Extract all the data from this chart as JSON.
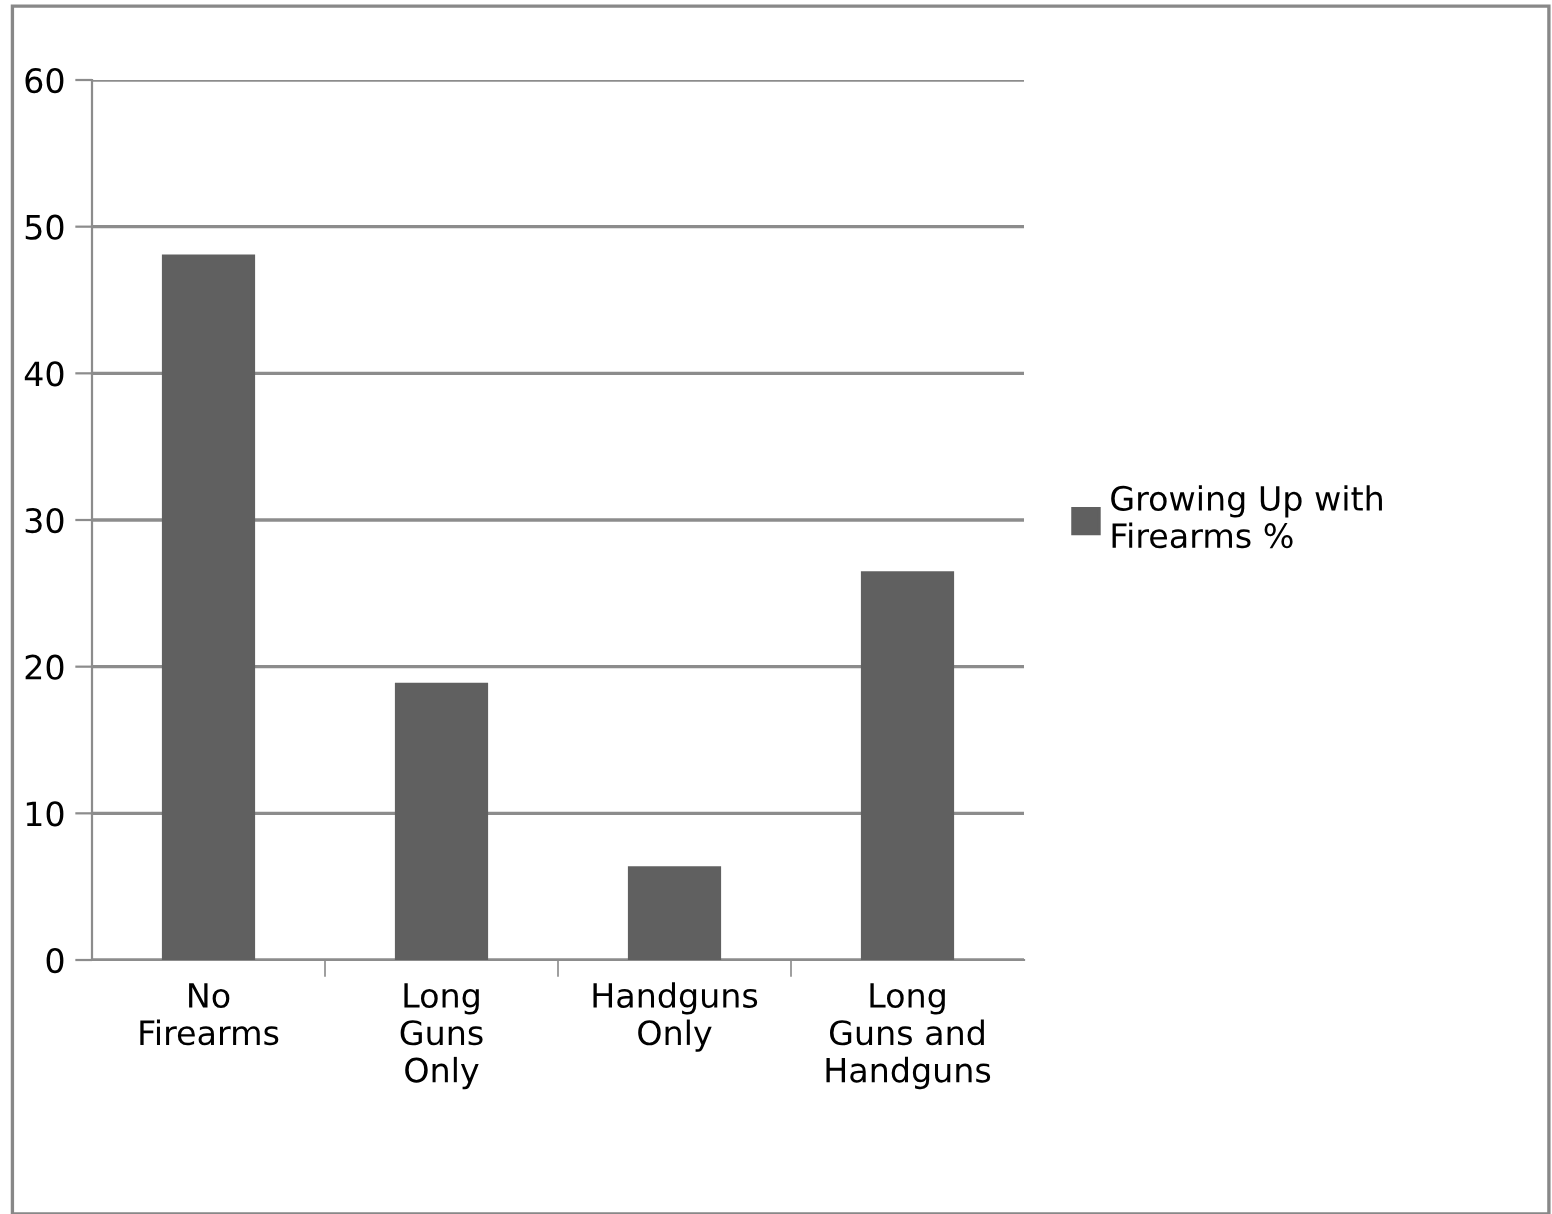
{
  "chart_data": {
    "type": "bar",
    "categories": [
      "No\nFirearms",
      "Long\nGuns\nOnly",
      "Handguns\nOnly",
      "Long\nGuns and\nHandguns"
    ],
    "series": [
      {
        "name": "Growing Up with\nFirearms %",
        "color": "#606060",
        "values": [
          48.1,
          18.9,
          6.4,
          26.5
        ]
      }
    ],
    "ylim": [
      0,
      60
    ],
    "yticks": [
      0,
      10,
      20,
      30,
      40,
      50,
      60
    ],
    "grid": "y",
    "legend": "right"
  }
}
